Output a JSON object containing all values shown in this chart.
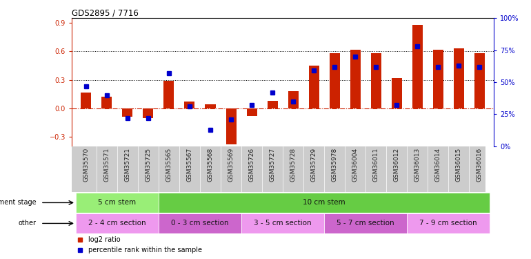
{
  "title": "GDS2895 / 7716",
  "samples": [
    "GSM35570",
    "GSM35571",
    "GSM35721",
    "GSM35725",
    "GSM35565",
    "GSM35567",
    "GSM35568",
    "GSM35569",
    "GSM35726",
    "GSM35727",
    "GSM35728",
    "GSM35729",
    "GSM35978",
    "GSM36004",
    "GSM36011",
    "GSM36012",
    "GSM36013",
    "GSM36014",
    "GSM36015",
    "GSM36016"
  ],
  "log2_ratio": [
    0.17,
    0.12,
    -0.09,
    -0.1,
    0.29,
    0.07,
    0.04,
    -0.38,
    -0.08,
    0.08,
    0.18,
    0.45,
    0.58,
    0.62,
    0.58,
    0.32,
    0.88,
    0.62,
    0.63,
    0.58
  ],
  "percentile": [
    47,
    40,
    22,
    22,
    57,
    31,
    13,
    21,
    32,
    42,
    35,
    59,
    62,
    70,
    62,
    32,
    78,
    62,
    63,
    62
  ],
  "bar_color": "#cc2200",
  "dot_color": "#0000cc",
  "zero_line_color": "#cc2200",
  "grid_color": "#000000",
  "ylim_left": [
    -0.4,
    0.95
  ],
  "ylim_right": [
    0,
    100
  ],
  "yticks_left": [
    -0.3,
    0.0,
    0.3,
    0.6,
    0.9
  ],
  "yticks_right": [
    0,
    25,
    50,
    75,
    100
  ],
  "hlines": [
    0.3,
    0.6
  ],
  "dev_stage_groups": [
    {
      "label": "5 cm stem",
      "start": 0,
      "end": 4,
      "color": "#99ee77"
    },
    {
      "label": "10 cm stem",
      "start": 4,
      "end": 20,
      "color": "#66cc44"
    }
  ],
  "other_groups": [
    {
      "label": "2 - 4 cm section",
      "start": 0,
      "end": 4,
      "color": "#ee99ee"
    },
    {
      "label": "0 - 3 cm section",
      "start": 4,
      "end": 8,
      "color": "#cc66cc"
    },
    {
      "label": "3 - 5 cm section",
      "start": 8,
      "end": 12,
      "color": "#ee99ee"
    },
    {
      "label": "5 - 7 cm section",
      "start": 12,
      "end": 16,
      "color": "#cc66cc"
    },
    {
      "label": "7 - 9 cm section",
      "start": 16,
      "end": 20,
      "color": "#ee99ee"
    }
  ],
  "dev_stage_row_label": "development stage",
  "other_row_label": "other",
  "legend_items": [
    {
      "label": "log2 ratio",
      "color": "#cc2200"
    },
    {
      "label": "percentile rank within the sample",
      "color": "#0000cc"
    }
  ],
  "bar_width": 0.5,
  "xlabel_bg": "#cccccc",
  "right_axis_labels": [
    "0%",
    "25%",
    "50%",
    "75%",
    "100%"
  ]
}
